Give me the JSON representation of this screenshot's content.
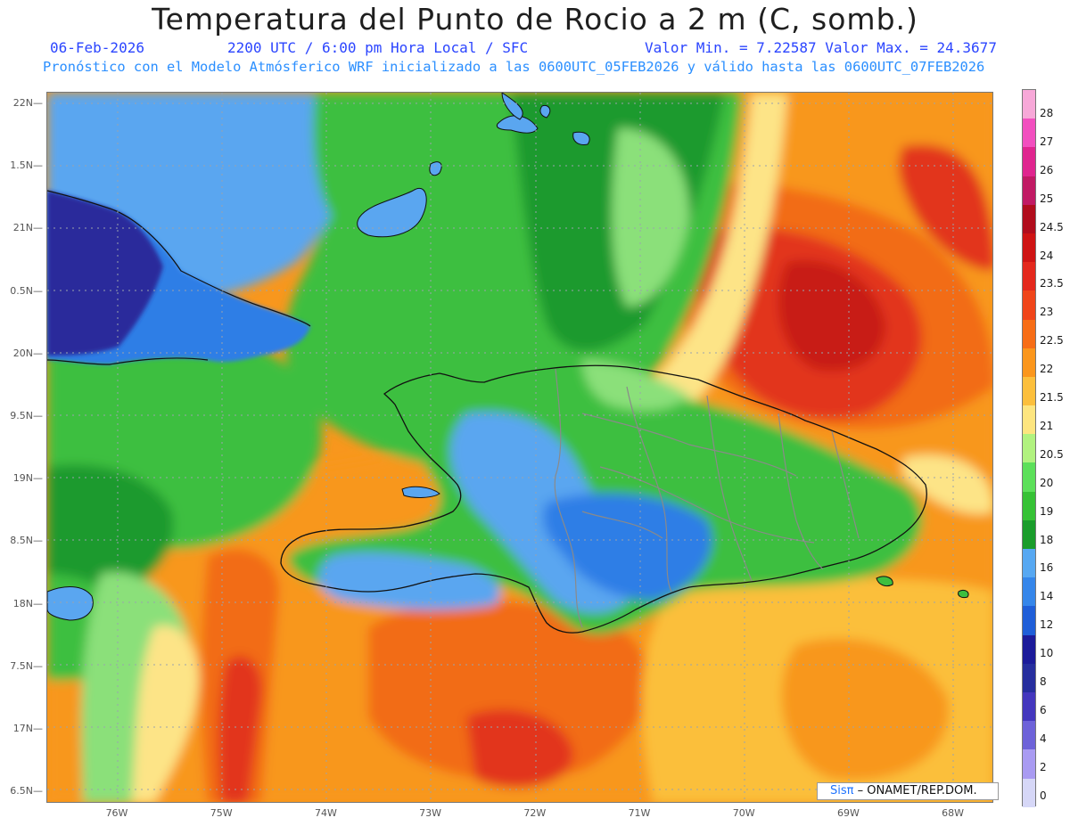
{
  "title": "Temperatura del Punto de Rocio a 2 m (C, somb.)",
  "header": {
    "date": "06-Feb-2026",
    "time": "2200 UTC / 6:00 pm Hora Local / SFC",
    "minmax": "Valor Min. = 7.22587  Valor Max. = 24.3677"
  },
  "subtitle": "Pronóstico con el Modelo Atmósferico WRF inicializado a las 0600UTC_05FEB2026 y válido hasta las  0600UTC_07FEB2026",
  "axes": {
    "lat_labels": [
      "22N",
      "1.5N",
      "21N",
      "0.5N",
      "20N",
      "9.5N",
      "19N",
      "8.5N",
      "18N",
      "7.5N",
      "17N",
      "6.5N"
    ],
    "lon_labels": [
      "76W",
      "75W",
      "74W",
      "73W",
      "72W",
      "71W",
      "70W",
      "69W",
      "68W"
    ]
  },
  "colorbar": {
    "levels": [
      "28",
      "27",
      "26",
      "25",
      "24.5",
      "24",
      "23.5",
      "23",
      "22.5",
      "22",
      "21.5",
      "21",
      "20.5",
      "20",
      "19",
      "18",
      "16",
      "14",
      "12",
      "10",
      "8",
      "6",
      "4",
      "2",
      "0"
    ],
    "colors": [
      "#f7a8d8",
      "#f24fbf",
      "#e0258f",
      "#c11a64",
      "#b10d1d",
      "#cf1414",
      "#e4281d",
      "#f0451a",
      "#f76d16",
      "#fb961c",
      "#fcbf3c",
      "#fde57f",
      "#b1f27f",
      "#5ce05a",
      "#36c235",
      "#1a9d2b",
      "#57a8f2",
      "#3586ea",
      "#1f5ed8",
      "#1c1b9a",
      "#262e9e",
      "#4437be",
      "#6d62d9",
      "#a99bf2",
      "#d6d7f7"
    ]
  },
  "credit": {
    "brand": "Sisπ",
    "text": " – ONAMET/REP.DOM."
  },
  "palette": {
    "sea_blue_dark": "#2a2a9b",
    "sea_blue": "#2f7ee6",
    "sky_blue": "#5aa6f0",
    "green_dark": "#1f9a2e",
    "green": "#3dbf3f",
    "green_light": "#8be07a",
    "yellow": "#fde487",
    "orange_light": "#fbbf3a",
    "orange": "#f8971d",
    "orange_dark": "#f26c17",
    "red": "#e2341b",
    "red_dark": "#c81b15"
  }
}
